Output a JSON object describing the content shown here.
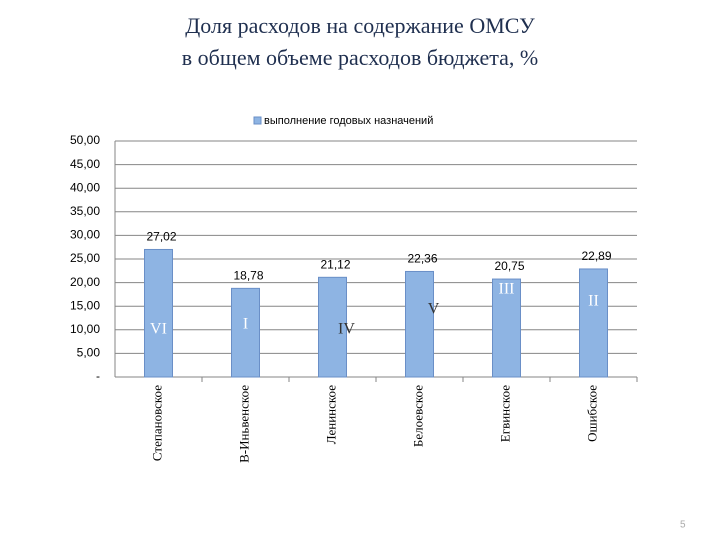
{
  "chart_data": {
    "type": "bar",
    "title_lines": [
      "Доля расходов на содержание ОМСУ",
      "в общем объеме расходов бюджета, %"
    ],
    "categories": [
      "Степановское",
      "В-Иньвенское",
      "Ленинское",
      "Белоевское",
      "Егвинское",
      "Ошибское"
    ],
    "series": [
      {
        "name": "выполнение годовых назначений",
        "color": "#8eb4e3",
        "values": [
          27.02,
          18.78,
          21.12,
          22.36,
          20.75,
          22.89
        ],
        "value_labels": [
          "27,02",
          "18,78",
          "21,12",
          "22,36",
          "20,75",
          "22,89"
        ]
      }
    ],
    "ranks": [
      "VI",
      "I",
      "IV",
      "V",
      "III",
      "II"
    ],
    "ylim": [
      0,
      50
    ],
    "yticks": [
      {
        "value": 0,
        "label": "-"
      },
      {
        "value": 5,
        "label": "5,00"
      },
      {
        "value": 10,
        "label": "10,00"
      },
      {
        "value": 15,
        "label": "15,00"
      },
      {
        "value": 20,
        "label": "20,00"
      },
      {
        "value": 25,
        "label": "25,00"
      },
      {
        "value": 30,
        "label": "30,00"
      },
      {
        "value": 35,
        "label": "35,00"
      },
      {
        "value": 40,
        "label": "40,00"
      },
      {
        "value": 45,
        "label": "45,00"
      },
      {
        "value": 50,
        "label": "50,00"
      }
    ],
    "grid": true,
    "page_number": "5"
  }
}
